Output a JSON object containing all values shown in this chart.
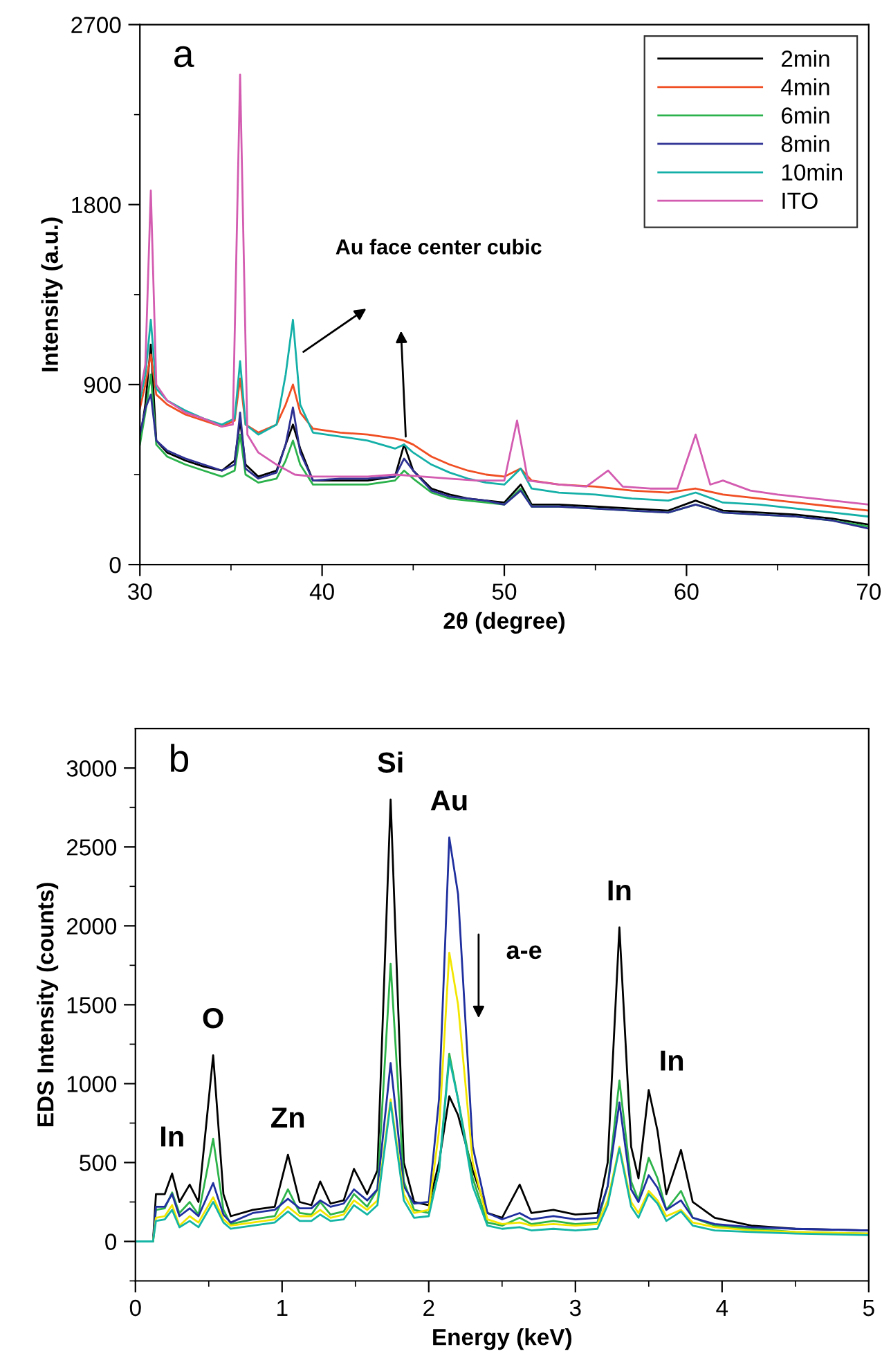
{
  "chart_data": [
    {
      "type": "line",
      "xlabel": "2θ (degree)",
      "ylabel": "Intensity (a.u.)",
      "xlim": [
        30,
        70
      ],
      "xticks": [
        30,
        {
          "value": 35,
          "label": null
        },
        40,
        {
          "value": 45,
          "label": null
        },
        50,
        {
          "value": 55,
          "label": null
        },
        60,
        {
          "value": 65,
          "label": null
        },
        70
      ],
      "ylim": [
        0,
        2700
      ],
      "yticks": [
        0,
        {
          "value": 450,
          "label": null
        },
        900,
        {
          "value": 1350,
          "label": null
        },
        1800,
        {
          "value": 2250,
          "label": null
        },
        2700
      ],
      "legend": "top right",
      "grid": false,
      "annotations": [
        "a",
        "Au face center cubic"
      ],
      "series": [
        {
          "name": "2min",
          "color": "#000000",
          "x": [
            30,
            30.3,
            30.6,
            30.9,
            31.5,
            32.5,
            33.5,
            34.5,
            35.2,
            35.5,
            35.8,
            36.5,
            37.5,
            38.0,
            38.4,
            38.8,
            39.5,
            41,
            42.5,
            44,
            44.5,
            45,
            46,
            47,
            48,
            49,
            50,
            50.9,
            51.5,
            53,
            55,
            57,
            59,
            60.5,
            62,
            64,
            66,
            68,
            70
          ],
          "values": [
            620,
            800,
            1100,
            620,
            560,
            520,
            490,
            470,
            520,
            720,
            500,
            440,
            470,
            600,
            700,
            580,
            420,
            420,
            420,
            440,
            600,
            470,
            380,
            350,
            330,
            320,
            310,
            400,
            300,
            300,
            290,
            280,
            270,
            320,
            270,
            260,
            250,
            230,
            200
          ]
        },
        {
          "name": "4min",
          "color": "#f04e23",
          "x": [
            30,
            30.3,
            30.6,
            30.9,
            31.5,
            32.5,
            33.5,
            34.5,
            35.2,
            35.5,
            35.8,
            36.5,
            37.5,
            38.0,
            38.4,
            38.8,
            39.5,
            41,
            42.5,
            44,
            44.5,
            45,
            46,
            47,
            48,
            49,
            50,
            50.9,
            51.5,
            53,
            55,
            57,
            59,
            60.5,
            62,
            64,
            66,
            68,
            70
          ],
          "values": [
            780,
            900,
            1050,
            850,
            800,
            750,
            720,
            690,
            720,
            930,
            700,
            660,
            700,
            800,
            900,
            760,
            680,
            660,
            650,
            630,
            620,
            600,
            540,
            500,
            470,
            450,
            440,
            480,
            420,
            400,
            390,
            370,
            360,
            380,
            350,
            330,
            310,
            290,
            270
          ]
        },
        {
          "name": "6min",
          "color": "#2bb24c",
          "x": [
            30,
            30.3,
            30.6,
            30.9,
            31.5,
            32.5,
            33.5,
            34.5,
            35.2,
            35.5,
            35.8,
            36.5,
            37.5,
            38.0,
            38.4,
            38.8,
            39.5,
            41,
            42.5,
            44,
            44.5,
            45,
            46,
            47,
            48,
            49,
            50,
            50.9,
            51.5,
            53,
            55,
            57,
            59,
            60.5,
            62,
            64,
            66,
            68,
            70
          ],
          "values": [
            600,
            760,
            950,
            600,
            540,
            500,
            470,
            440,
            470,
            650,
            450,
            410,
            430,
            520,
            620,
            500,
            400,
            400,
            400,
            420,
            470,
            430,
            360,
            330,
            320,
            310,
            300,
            380,
            290,
            290,
            280,
            270,
            260,
            300,
            260,
            250,
            240,
            220,
            190
          ]
        },
        {
          "name": "8min",
          "color": "#2e3192",
          "x": [
            30,
            30.3,
            30.6,
            30.9,
            31.5,
            32.5,
            33.5,
            34.5,
            35.2,
            35.5,
            35.8,
            36.5,
            37.5,
            38.0,
            38.4,
            38.8,
            39.5,
            41,
            42.5,
            44,
            44.5,
            45,
            46,
            47,
            48,
            49,
            50,
            50.9,
            51.5,
            53,
            55,
            57,
            59,
            60.5,
            62,
            64,
            66,
            68,
            70
          ],
          "values": [
            650,
            780,
            850,
            620,
            570,
            530,
            500,
            470,
            500,
            760,
            480,
            430,
            460,
            600,
            786,
            560,
            420,
            430,
            430,
            440,
            530,
            470,
            370,
            340,
            330,
            320,
            300,
            370,
            290,
            290,
            280,
            270,
            260,
            300,
            260,
            250,
            240,
            220,
            180
          ]
        },
        {
          "name": "10min",
          "color": "#14b0a8",
          "x": [
            30,
            30.3,
            30.6,
            30.9,
            31.5,
            32.5,
            33.5,
            34.5,
            35.2,
            35.5,
            35.8,
            36.5,
            37.5,
            38.0,
            38.4,
            38.8,
            39.5,
            41,
            42.5,
            44,
            44.5,
            45,
            46,
            47,
            48,
            49,
            50,
            50.9,
            51.5,
            53,
            55,
            57,
            59,
            60.5,
            62,
            64,
            66,
            68,
            70
          ],
          "values": [
            820,
            950,
            1224,
            880,
            820,
            770,
            730,
            700,
            730,
            1017,
            700,
            650,
            700,
            950,
            1224,
            800,
            660,
            640,
            620,
            580,
            600,
            560,
            500,
            460,
            430,
            410,
            400,
            480,
            380,
            360,
            350,
            330,
            320,
            360,
            310,
            300,
            280,
            260,
            240
          ]
        },
        {
          "name": "ITO",
          "color": "#d35bb0",
          "x": [
            30,
            30.3,
            30.6,
            30.9,
            31.5,
            32.5,
            33.5,
            34.5,
            35.1,
            35.5,
            35.9,
            36.5,
            37.5,
            38.5,
            39.5,
            41,
            42.5,
            44,
            45.5,
            47,
            48.5,
            50,
            50.7,
            51.3,
            53,
            54.5,
            55.7,
            56.5,
            58,
            59.5,
            60.5,
            61.3,
            62,
            63.5,
            65,
            67,
            70
          ],
          "values": [
            850,
            1000,
            1870,
            900,
            820,
            760,
            730,
            690,
            700,
            2450,
            650,
            560,
            500,
            450,
            440,
            440,
            440,
            450,
            440,
            430,
            420,
            420,
            720,
            420,
            400,
            390,
            470,
            390,
            380,
            380,
            650,
            400,
            420,
            370,
            350,
            330,
            300
          ]
        }
      ]
    },
    {
      "type": "line",
      "xlabel": "Energy (keV)",
      "ylabel": "EDS Intensity (counts)",
      "xlim": [
        0,
        5
      ],
      "xticks": [
        0,
        {
          "value": 0.5,
          "label": null
        },
        1,
        {
          "value": 1.5,
          "label": null
        },
        2,
        {
          "value": 2.5,
          "label": null
        },
        3,
        {
          "value": 3.5,
          "label": null
        },
        4,
        {
          "value": 4.5,
          "label": null
        },
        5
      ],
      "ylim": [
        -250,
        3250
      ],
      "yticks": [
        {
          "value": -250,
          "label": null
        },
        0,
        {
          "value": 250,
          "label": null
        },
        500,
        {
          "value": 750,
          "label": null
        },
        1000,
        {
          "value": 1250,
          "label": null
        },
        1500,
        {
          "value": 1750,
          "label": null
        },
        2000,
        {
          "value": 2250,
          "label": null
        },
        2500,
        {
          "value": 2750,
          "label": null
        },
        3000
      ],
      "grid": false,
      "legend": false,
      "annotations": [
        "b",
        "a-e",
        {
          "text": "In",
          "x": 0.25,
          "y": 430
        },
        {
          "text": "O",
          "x": 0.53,
          "y": 1180
        },
        {
          "text": "Zn",
          "x": 1.04,
          "y": 550
        },
        {
          "text": "Si",
          "x": 1.74,
          "y": 2800
        },
        {
          "text": "Au",
          "x": 2.14,
          "y": 2560
        },
        {
          "text": "In",
          "x": 3.3,
          "y": 1990
        },
        {
          "text": "In",
          "x": 3.5,
          "y": 960
        }
      ],
      "x": [
        0,
        0.12,
        0.14,
        0.2,
        0.25,
        0.3,
        0.37,
        0.43,
        0.53,
        0.6,
        0.65,
        0.8,
        0.95,
        1.04,
        1.12,
        1.2,
        1.26,
        1.33,
        1.42,
        1.49,
        1.58,
        1.65,
        1.74,
        1.83,
        1.9,
        2.0,
        2.07,
        2.14,
        2.2,
        2.3,
        2.4,
        2.5,
        2.62,
        2.7,
        2.85,
        3.0,
        3.15,
        3.22,
        3.3,
        3.38,
        3.43,
        3.5,
        3.56,
        3.62,
        3.72,
        3.8,
        3.95,
        4.2,
        4.5,
        5
      ],
      "series": [
        {
          "color": "#000000",
          "values": [
            0,
            0,
            300,
            300,
            430,
            250,
            360,
            250,
            1180,
            300,
            160,
            200,
            220,
            550,
            250,
            230,
            380,
            240,
            260,
            460,
            300,
            450,
            2800,
            500,
            250,
            230,
            500,
            920,
            800,
            450,
            180,
            150,
            360,
            180,
            200,
            170,
            180,
            500,
            1990,
            600,
            400,
            960,
            700,
            300,
            580,
            250,
            150,
            100,
            80,
            70
          ]
        },
        {
          "color": "#2db34a",
          "values": [
            0,
            0,
            200,
            210,
            310,
            180,
            250,
            170,
            650,
            200,
            110,
            140,
            160,
            330,
            180,
            170,
            250,
            170,
            190,
            300,
            220,
            330,
            1760,
            380,
            200,
            180,
            450,
            1190,
            900,
            400,
            120,
            100,
            150,
            110,
            130,
            110,
            120,
            350,
            1020,
            380,
            260,
            530,
            400,
            200,
            320,
            150,
            100,
            80,
            60,
            50
          ]
        },
        {
          "color": "#1f2f9e",
          "values": [
            0,
            0,
            220,
            220,
            300,
            160,
            210,
            160,
            370,
            170,
            120,
            180,
            200,
            270,
            210,
            210,
            260,
            220,
            240,
            330,
            260,
            330,
            1130,
            350,
            240,
            250,
            900,
            2560,
            2200,
            600,
            180,
            140,
            180,
            140,
            160,
            140,
            150,
            350,
            880,
            330,
            250,
            420,
            340,
            200,
            260,
            150,
            110,
            90,
            80,
            70
          ]
        },
        {
          "color": "#f2e600",
          "values": [
            0,
            0,
            150,
            160,
            230,
            100,
            160,
            120,
            280,
            140,
            100,
            120,
            140,
            220,
            160,
            160,
            200,
            150,
            170,
            260,
            200,
            260,
            900,
            300,
            180,
            200,
            700,
            1830,
            1500,
            500,
            140,
            110,
            120,
            100,
            110,
            100,
            110,
            260,
            600,
            250,
            180,
            320,
            260,
            160,
            200,
            120,
            90,
            70,
            60,
            50
          ]
        },
        {
          "color": "#14b5a5",
          "values": [
            0,
            0,
            130,
            140,
            200,
            90,
            130,
            90,
            250,
            120,
            80,
            100,
            120,
            190,
            130,
            130,
            170,
            130,
            140,
            230,
            170,
            230,
            880,
            260,
            150,
            160,
            450,
            1160,
            900,
            350,
            100,
            80,
            90,
            70,
            80,
            70,
            80,
            230,
            590,
            220,
            150,
            300,
            240,
            130,
            190,
            100,
            70,
            60,
            50,
            40
          ]
        }
      ]
    }
  ]
}
